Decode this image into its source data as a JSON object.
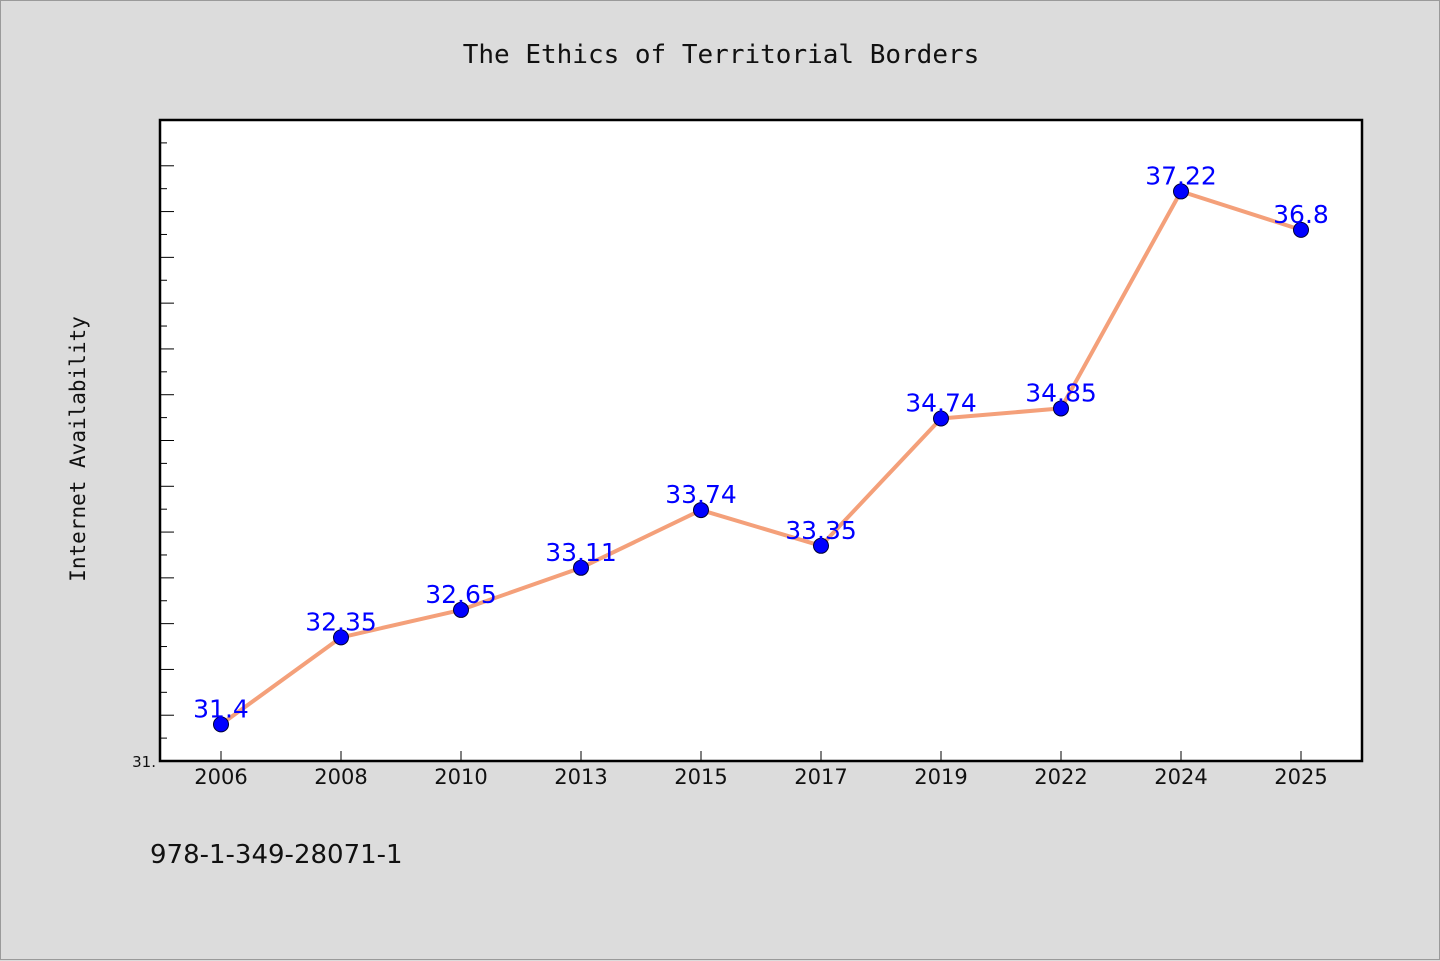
{
  "chart_data": {
    "type": "line",
    "title": "The Ethics of Territorial Borders",
    "xlabel": "",
    "ylabel": "Internet Availability",
    "categories": [
      "2006",
      "2008",
      "2010",
      "2013",
      "2015",
      "2017",
      "2019",
      "2022",
      "2024",
      "2025"
    ],
    "series": [
      {
        "values": [
          31.4,
          32.35,
          32.65,
          33.11,
          33.74,
          33.35,
          34.74,
          34.85,
          37.22,
          36.8
        ],
        "data_labels": [
          "31.4",
          "32.35",
          "32.65",
          "33.11",
          "33.74",
          "33.35",
          "34.74",
          "34.85",
          "37.22",
          "36.8"
        ],
        "line_color": "#f4a07a",
        "marker_color": "#0000ff"
      }
    ],
    "ylim": [
      31,
      38
    ],
    "y_tick_labels": [
      "31."
    ],
    "grid": false,
    "legend": "none"
  },
  "footer": {
    "text": "978-1-349-28071-1"
  },
  "colors": {
    "background": "#dcdcdc",
    "plot_background": "#ffffff",
    "line": "#f4a07a",
    "marker": "#0000ff",
    "data_label": "#0000ff"
  }
}
